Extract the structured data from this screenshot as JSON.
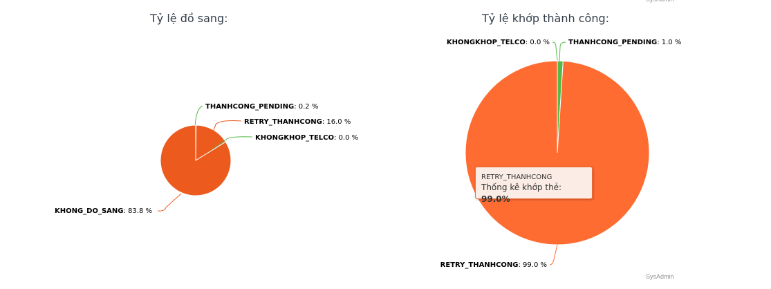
{
  "credits": "SysAdmin",
  "chart_data": [
    {
      "type": "pie",
      "title": "Tỷ lệ đồ sang:",
      "slices": [
        {
          "name": "THANHCONG_PENDING",
          "value": 0.2,
          "label_value": "0.2 %"
        },
        {
          "name": "RETRY_THANHCONG",
          "value": 16.0,
          "label_value": "16.0 %"
        },
        {
          "name": "KHONGKHOP_TELCO",
          "value": 0.0,
          "label_value": "0.0 %"
        },
        {
          "name": "KHONG_DO_SANG",
          "value": 83.8,
          "label_value": "83.8 %"
        }
      ],
      "colors": [
        "#56b849",
        "#ec5a1e",
        "#56b849",
        "#ec5a1e"
      ]
    },
    {
      "type": "pie",
      "title": "Tỷ lệ khớp thành công:",
      "slices": [
        {
          "name": "KHONGKHOP_TELCO",
          "value": 0.0,
          "label_value": "0.0 %"
        },
        {
          "name": "THANHCONG_PENDING",
          "value": 1.0,
          "label_value": "1.0 %"
        },
        {
          "name": "RETRY_THANHCONG",
          "value": 99.0,
          "label_value": "99.0 %"
        }
      ],
      "colors": [
        "#56b849",
        "#56b849",
        "#ff6c32"
      ],
      "tooltip": {
        "series": "RETRY_THANHCONG",
        "label": "Thống kê khớp thẻ: ",
        "value": "99.0%"
      }
    }
  ]
}
